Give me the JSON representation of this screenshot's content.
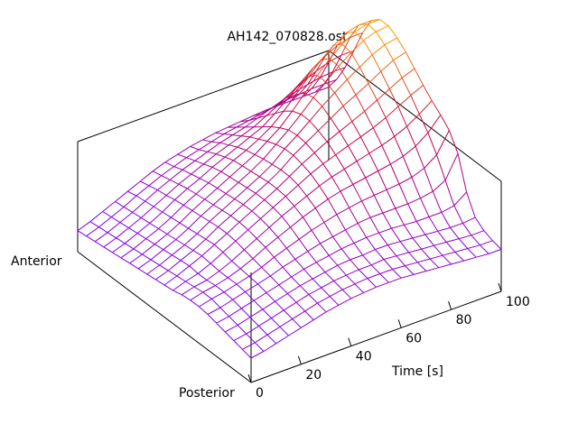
{
  "chart_data": {
    "type": "surface-3d-mesh",
    "title": "AH142_070828.ost",
    "xlabel": "Time [s]",
    "y_axis_end_labels": {
      "near": "Posterior",
      "far": "Anterior"
    },
    "xlim": [
      0,
      100
    ],
    "x_ticks": [
      "0",
      "20",
      "40",
      "60",
      "80",
      "100"
    ],
    "time_s": [
      0,
      5,
      10,
      15,
      20,
      25,
      30,
      35,
      40,
      45,
      50,
      55,
      60,
      65,
      70,
      75,
      80,
      85,
      90,
      95,
      100
    ],
    "ap_position": [
      0,
      0.05,
      0.1,
      0.15,
      0.2,
      0.25,
      0.3,
      0.35,
      0.4,
      0.45,
      0.5,
      0.55,
      0.6,
      0.65,
      0.7,
      0.75,
      0.8,
      0.85,
      0.9,
      0.95,
      1
    ],
    "surface_values": [
      [
        0.22,
        0.24,
        0.26,
        0.28,
        0.3,
        0.32,
        0.33,
        0.33,
        0.32,
        0.3,
        0.29,
        0.28,
        0.27,
        0.26,
        0.25,
        0.24,
        0.23,
        0.22,
        0.21,
        0.2,
        0.19
      ],
      [
        0.24,
        0.26,
        0.28,
        0.3,
        0.32,
        0.34,
        0.36,
        0.36,
        0.35,
        0.34,
        0.33,
        0.32,
        0.31,
        0.3,
        0.29,
        0.28,
        0.27,
        0.26,
        0.25,
        0.24,
        0.23
      ],
      [
        0.27,
        0.29,
        0.31,
        0.33,
        0.35,
        0.37,
        0.38,
        0.38,
        0.37,
        0.37,
        0.38,
        0.37,
        0.36,
        0.35,
        0.34,
        0.33,
        0.32,
        0.31,
        0.3,
        0.29,
        0.28
      ],
      [
        0.3,
        0.32,
        0.34,
        0.36,
        0.38,
        0.4,
        0.41,
        0.41,
        0.41,
        0.42,
        0.43,
        0.42,
        0.41,
        0.4,
        0.39,
        0.38,
        0.37,
        0.36,
        0.35,
        0.34,
        0.33
      ],
      [
        0.33,
        0.35,
        0.37,
        0.39,
        0.41,
        0.43,
        0.44,
        0.45,
        0.46,
        0.48,
        0.49,
        0.48,
        0.47,
        0.46,
        0.45,
        0.44,
        0.43,
        0.42,
        0.41,
        0.4,
        0.38
      ],
      [
        0.36,
        0.38,
        0.4,
        0.42,
        0.44,
        0.46,
        0.48,
        0.5,
        0.52,
        0.54,
        0.55,
        0.55,
        0.54,
        0.53,
        0.52,
        0.51,
        0.5,
        0.48,
        0.47,
        0.45,
        0.43
      ],
      [
        0.39,
        0.41,
        0.43,
        0.45,
        0.47,
        0.5,
        0.53,
        0.56,
        0.58,
        0.6,
        0.61,
        0.61,
        0.6,
        0.59,
        0.58,
        0.57,
        0.56,
        0.54,
        0.52,
        0.5,
        0.48
      ],
      [
        0.41,
        0.43,
        0.45,
        0.47,
        0.5,
        0.53,
        0.57,
        0.61,
        0.64,
        0.66,
        0.67,
        0.67,
        0.66,
        0.65,
        0.64,
        0.63,
        0.61,
        0.59,
        0.57,
        0.54,
        0.52
      ],
      [
        0.43,
        0.45,
        0.47,
        0.49,
        0.52,
        0.56,
        0.61,
        0.66,
        0.7,
        0.72,
        0.73,
        0.73,
        0.72,
        0.71,
        0.7,
        0.69,
        0.67,
        0.64,
        0.61,
        0.58,
        0.55
      ],
      [
        0.44,
        0.46,
        0.48,
        0.51,
        0.54,
        0.59,
        0.65,
        0.71,
        0.75,
        0.78,
        0.79,
        0.79,
        0.78,
        0.77,
        0.76,
        0.75,
        0.72,
        0.69,
        0.65,
        0.61,
        0.58
      ],
      [
        0.45,
        0.47,
        0.49,
        0.52,
        0.56,
        0.61,
        0.68,
        0.75,
        0.8,
        0.84,
        0.86,
        0.86,
        0.85,
        0.84,
        0.82,
        0.8,
        0.77,
        0.73,
        0.69,
        0.64,
        0.6
      ],
      [
        0.45,
        0.47,
        0.49,
        0.52,
        0.57,
        0.63,
        0.71,
        0.79,
        0.85,
        0.9,
        0.93,
        0.95,
        0.95,
        0.93,
        0.9,
        0.86,
        0.82,
        0.77,
        0.72,
        0.67,
        0.62
      ],
      [
        0.45,
        0.47,
        0.5,
        0.53,
        0.58,
        0.65,
        0.73,
        0.82,
        0.89,
        0.95,
        0.99,
        1.02,
        1.03,
        1.02,
        0.98,
        0.93,
        0.87,
        0.81,
        0.75,
        0.69,
        0.63
      ],
      [
        0.44,
        0.46,
        0.49,
        0.53,
        0.58,
        0.66,
        0.75,
        0.84,
        0.92,
        0.99,
        1.05,
        1.09,
        1.12,
        1.12,
        1.09,
        1.03,
        0.95,
        0.87,
        0.79,
        0.71,
        0.64
      ],
      [
        0.43,
        0.45,
        0.48,
        0.52,
        0.58,
        0.66,
        0.76,
        0.86,
        0.95,
        1.03,
        1.1,
        1.16,
        1.21,
        1.23,
        1.21,
        1.14,
        1.04,
        0.93,
        0.83,
        0.73,
        0.65
      ],
      [
        0.42,
        0.44,
        0.47,
        0.51,
        0.57,
        0.66,
        0.77,
        0.88,
        0.98,
        1.07,
        1.15,
        1.23,
        1.29,
        1.33,
        1.33,
        1.26,
        1.14,
        1.0,
        0.87,
        0.75,
        0.66
      ],
      [
        0.41,
        0.43,
        0.46,
        0.5,
        0.56,
        0.66,
        0.78,
        0.9,
        1.01,
        1.11,
        1.2,
        1.29,
        1.37,
        1.43,
        1.44,
        1.37,
        1.23,
        1.06,
        0.9,
        0.77,
        0.66
      ],
      [
        0.4,
        0.42,
        0.45,
        0.49,
        0.56,
        0.67,
        0.8,
        0.93,
        1.05,
        1.16,
        1.26,
        1.35,
        1.44,
        1.51,
        1.53,
        1.46,
        1.3,
        1.11,
        0.93,
        0.78,
        0.66
      ],
      [
        0.39,
        0.41,
        0.44,
        0.48,
        0.56,
        0.69,
        0.84,
        0.98,
        1.1,
        1.22,
        1.32,
        1.42,
        1.51,
        1.58,
        1.6,
        1.53,
        1.36,
        1.15,
        0.95,
        0.79,
        0.66
      ],
      [
        0.38,
        0.4,
        0.43,
        0.48,
        0.58,
        0.75,
        0.92,
        1.06,
        1.17,
        1.28,
        1.38,
        1.48,
        1.56,
        1.62,
        1.63,
        1.56,
        1.39,
        1.17,
        0.96,
        0.79,
        0.66
      ],
      [
        0.38,
        0.4,
        0.43,
        0.49,
        0.66,
        0.95,
        1.1,
        1.18,
        1.25,
        1.33,
        1.42,
        1.51,
        1.58,
        1.63,
        1.63,
        1.56,
        1.39,
        1.17,
        0.96,
        0.79,
        0.66
      ]
    ],
    "zlim": [
      0,
      2.2
    ],
    "colormap": {
      "low": "#7a00ff",
      "mid": "#c80046",
      "high": "#ffa500"
    },
    "grid": false,
    "legend": "none"
  }
}
